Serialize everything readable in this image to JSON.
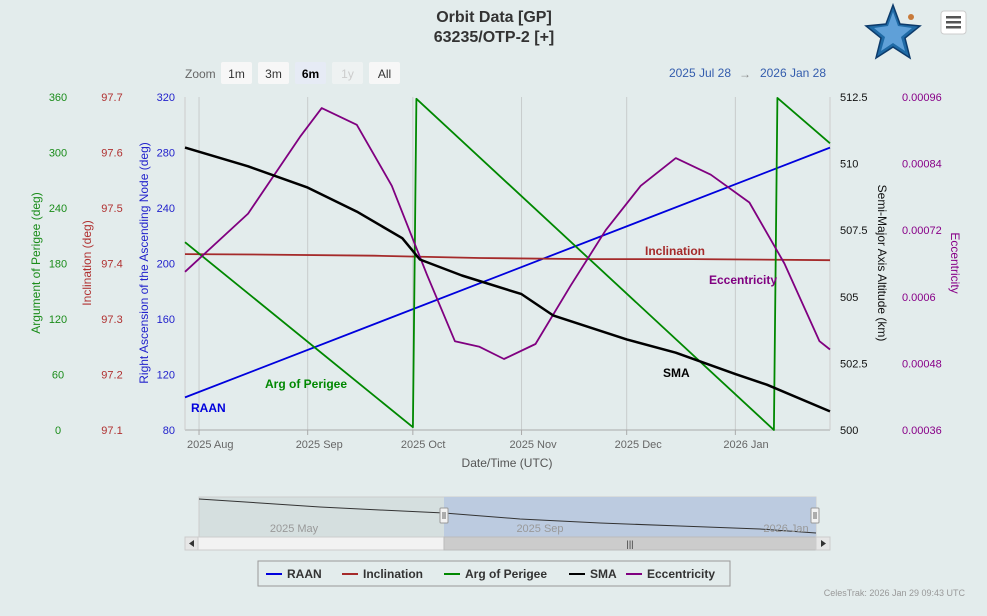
{
  "header": {
    "title": "Orbit Data [GP]",
    "subtitle": "63235/OTP-2 [+]",
    "logo_icon": "celestrak-star-icon",
    "menu_icon": "hamburger-menu-icon"
  },
  "range_selector": {
    "zoom_label": "Zoom",
    "buttons": [
      {
        "label": "1m",
        "state": "normal"
      },
      {
        "label": "3m",
        "state": "normal"
      },
      {
        "label": "6m",
        "state": "selected"
      },
      {
        "label": "1y",
        "state": "disabled"
      },
      {
        "label": "All",
        "state": "normal"
      }
    ],
    "from": "2025 Jul 28",
    "arrow": "→",
    "to": "2026 Jan 28"
  },
  "chart_data": {
    "type": "line",
    "title": "Orbit Data [GP]",
    "subtitle": "63235/OTP-2 [+]",
    "xlabel": "Date/Time (UTC)",
    "x_range": [
      "2025-07-28",
      "2026-01-28"
    ],
    "x_ticks": [
      {
        "date": "2025-08-01",
        "label": "2025 Aug"
      },
      {
        "date": "2025-09-01",
        "label": "2025 Sep"
      },
      {
        "date": "2025-10-01",
        "label": "2025 Oct"
      },
      {
        "date": "2025-11-01",
        "label": "2025 Nov"
      },
      {
        "date": "2025-12-01",
        "label": "2025 Dec"
      },
      {
        "date": "2026-01-01",
        "label": "2026 Jan"
      }
    ],
    "grid": true,
    "legend_position": "bottom",
    "axes": [
      {
        "id": "perigee",
        "title": "Argument of Perigee (deg)",
        "side": "left",
        "color": "#1a8c1a",
        "min": 0,
        "max": 360,
        "ticks": [
          "0",
          "60",
          "120",
          "180",
          "240",
          "300",
          "360"
        ]
      },
      {
        "id": "incl",
        "title": "Inclination (deg)",
        "side": "left",
        "color": "#b03030",
        "min": 97.1,
        "max": 97.7,
        "ticks": [
          "97.1",
          "97.2",
          "97.3",
          "97.4",
          "97.5",
          "97.6",
          "97.7"
        ]
      },
      {
        "id": "raan",
        "title": "Right Ascension of the Ascending Node (deg)",
        "side": "left",
        "color": "#2222cc",
        "min": 80,
        "max": 320,
        "ticks": [
          "80",
          "120",
          "160",
          "200",
          "240",
          "280",
          "320"
        ]
      },
      {
        "id": "sma",
        "title": "Semi-Major Axis Altitude (km)",
        "side": "right",
        "color": "#111111",
        "min": 500,
        "max": 512.5,
        "ticks": [
          "500",
          "502.5",
          "505",
          "507.5",
          "510",
          "512.5"
        ]
      },
      {
        "id": "ecc",
        "title": "Eccentricity",
        "side": "right",
        "color": "#880088",
        "min": 0.00036,
        "max": 0.00096,
        "ticks": [
          "0.00036",
          "0.00048",
          "0.0006",
          "0.00072",
          "0.00084",
          "0.00096"
        ]
      }
    ],
    "series": [
      {
        "name": "RAAN",
        "axis": "raan",
        "color": "#0000dd",
        "label": "RAAN",
        "points": [
          [
            "2025-07-28",
            103.5
          ],
          [
            "2026-01-28",
            283.5
          ]
        ]
      },
      {
        "name": "Inclination",
        "axis": "incl",
        "color": "#a52a2a",
        "label": "Inclination",
        "points": [
          [
            "2025-07-28",
            97.417
          ],
          [
            "2025-08-20",
            97.416
          ],
          [
            "2025-09-20",
            97.414
          ],
          [
            "2025-10-20",
            97.41
          ],
          [
            "2025-11-20",
            97.408
          ],
          [
            "2025-12-20",
            97.408
          ],
          [
            "2026-01-28",
            97.406
          ]
        ]
      },
      {
        "name": "Arg of Perigee",
        "axis": "perigee",
        "color": "#008800",
        "label": "Arg of Perigee",
        "points": [
          [
            "2025-07-28",
            203
          ],
          [
            "2025-10-01",
            3
          ],
          [
            "2025-10-02",
            358
          ],
          [
            "2026-01-12",
            0
          ],
          [
            "2026-01-13",
            359
          ],
          [
            "2026-01-28",
            310
          ]
        ]
      },
      {
        "name": "SMA",
        "axis": "sma",
        "color": "#000000",
        "label": "SMA",
        "points": [
          [
            "2025-07-28",
            510.6
          ],
          [
            "2025-08-15",
            509.9
          ],
          [
            "2025-09-01",
            509.1
          ],
          [
            "2025-09-15",
            508.2
          ],
          [
            "2025-09-28",
            507.2
          ],
          [
            "2025-10-03",
            506.4
          ],
          [
            "2025-10-15",
            505.8
          ],
          [
            "2025-11-01",
            505.1
          ],
          [
            "2025-11-10",
            504.3
          ],
          [
            "2025-12-01",
            503.4
          ],
          [
            "2025-12-15",
            502.9
          ],
          [
            "2026-01-01",
            502.1
          ],
          [
            "2026-01-10",
            501.7
          ],
          [
            "2026-01-28",
            500.7
          ]
        ]
      },
      {
        "name": "Eccentricity",
        "axis": "ecc",
        "color": "#800080",
        "label": "Eccentricity",
        "points": [
          [
            "2025-07-28",
            0.000645
          ],
          [
            "2025-08-15",
            0.00075
          ],
          [
            "2025-08-30",
            0.00089
          ],
          [
            "2025-09-05",
            0.00094
          ],
          [
            "2025-09-15",
            0.00091
          ],
          [
            "2025-09-25",
            0.0008
          ],
          [
            "2025-10-05",
            0.00064
          ],
          [
            "2025-10-13",
            0.00052
          ],
          [
            "2025-10-20",
            0.00051
          ],
          [
            "2025-10-27",
            0.000488
          ],
          [
            "2025-11-05",
            0.000515
          ],
          [
            "2025-11-15",
            0.00062
          ],
          [
            "2025-11-25",
            0.00072
          ],
          [
            "2025-12-05",
            0.0008
          ],
          [
            "2025-12-15",
            0.00085
          ],
          [
            "2025-12-25",
            0.00082
          ],
          [
            "2026-01-05",
            0.00077
          ],
          [
            "2026-01-15",
            0.00066
          ],
          [
            "2026-01-25",
            0.00052
          ],
          [
            "2026-01-28",
            0.000505
          ]
        ]
      }
    ]
  },
  "navigator": {
    "labels": [
      "2025 May",
      "2025 Sep",
      "2026 Jan"
    ],
    "scrollbar_grip": "|||"
  },
  "legend": {
    "items": [
      {
        "label": "RAAN",
        "color": "#0000dd"
      },
      {
        "label": "Inclination",
        "color": "#a52a2a"
      },
      {
        "label": "Arg of Perigee",
        "color": "#008800"
      },
      {
        "label": "SMA",
        "color": "#000000"
      },
      {
        "label": "Eccentricity",
        "color": "#800080"
      }
    ]
  },
  "credits": "CelesTrak: 2026 Jan 29 09:43 UTC"
}
